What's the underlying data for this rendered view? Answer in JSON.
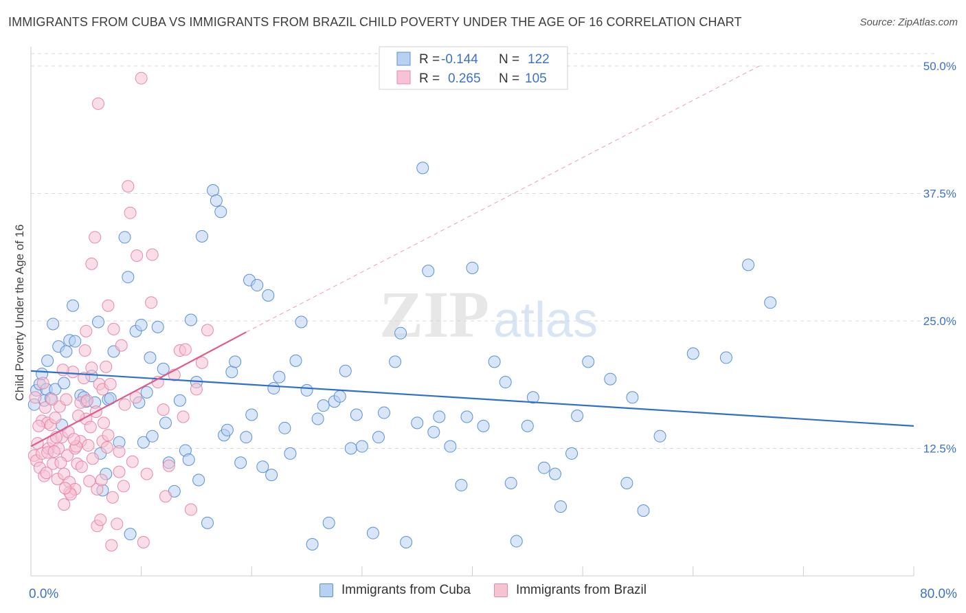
{
  "header": {
    "title": "IMMIGRANTS FROM CUBA VS IMMIGRANTS FROM BRAZIL CHILD POVERTY UNDER THE AGE OF 16 CORRELATION CHART",
    "source": "Source: ZipAtlas.com"
  },
  "watermark": {
    "zip": "ZIP",
    "atlas": "atlas"
  },
  "colors": {
    "cuba_fill": "#b8d1f2",
    "cuba_stroke": "#5b8fd6",
    "cuba_line": "#2e6fcc",
    "brazil_fill": "#f6c3d3",
    "brazil_stroke": "#e888a8",
    "brazil_line": "#e05b8a",
    "axis_label": "#3b72c4",
    "grid": "#d9d9d9"
  },
  "stats_legend": {
    "rows": [
      {
        "r_label": "R =",
        "r_value": "-0.144",
        "n_label": "N =",
        "n_value": "122"
      },
      {
        "r_label": "R =",
        "r_value": "0.265",
        "n_label": "N =",
        "n_value": "105"
      }
    ]
  },
  "chart_data": {
    "type": "scatter",
    "title": "IMMIGRANTS FROM CUBA VS IMMIGRANTS FROM BRAZIL CHILD POVERTY UNDER THE AGE OF 16 CORRELATION CHART",
    "xlabel": "",
    "ylabel": "Child Poverty Under the Age of 16",
    "xlim": [
      0,
      80
    ],
    "ylim": [
      0,
      50
    ],
    "x_tick_labels": [
      {
        "value": 0,
        "label": "0.0%"
      },
      {
        "value": 80,
        "label": "80.0%"
      }
    ],
    "y_tick_labels": [
      {
        "value": 12.5,
        "label": "12.5%"
      },
      {
        "value": 25,
        "label": "25.0%"
      },
      {
        "value": 37.5,
        "label": "37.5%"
      },
      {
        "value": 50,
        "label": "50.0%"
      }
    ],
    "grid": true,
    "legend": "bottom",
    "series": [
      {
        "name": "Immigrants from Cuba",
        "r": -0.144,
        "n": 122,
        "trend": {
          "x0": 0,
          "y0": 20.1,
          "x1": 80,
          "y1": 14.7
        },
        "points": [
          [
            0.5,
            18.2
          ],
          [
            0.8,
            18.8
          ],
          [
            1.2,
            17.2
          ],
          [
            1.4,
            18.3
          ],
          [
            1.5,
            21.1
          ],
          [
            1.8,
            17.4
          ],
          [
            2.0,
            24.7
          ],
          [
            2.2,
            18.3
          ],
          [
            2.5,
            22.5
          ],
          [
            3.0,
            18.9
          ],
          [
            3.2,
            22.0
          ],
          [
            3.5,
            23.1
          ],
          [
            3.8,
            26.5
          ],
          [
            4.0,
            23.0
          ],
          [
            4.5,
            17.7
          ],
          [
            4.8,
            17.5
          ],
          [
            5.0,
            17.1
          ],
          [
            5.5,
            19.6
          ],
          [
            5.8,
            17.0
          ],
          [
            6.1,
            24.9
          ],
          [
            6.5,
            8.4
          ],
          [
            6.8,
            10.0
          ],
          [
            7.0,
            17.3
          ],
          [
            7.2,
            17.4
          ],
          [
            7.5,
            22.0
          ],
          [
            8.0,
            13.1
          ],
          [
            8.5,
            33.2
          ],
          [
            8.8,
            29.3
          ],
          [
            9.0,
            4.1
          ],
          [
            9.5,
            24.0
          ],
          [
            10.0,
            24.6
          ],
          [
            10.2,
            13.1
          ],
          [
            10.5,
            18.0
          ],
          [
            10.8,
            21.4
          ],
          [
            11.0,
            13.7
          ],
          [
            11.5,
            24.4
          ],
          [
            12.0,
            20.3
          ],
          [
            12.5,
            11.1
          ],
          [
            13.0,
            8.3
          ],
          [
            13.5,
            17.2
          ],
          [
            14.0,
            12.3
          ],
          [
            14.3,
            11.4
          ],
          [
            14.5,
            25.1
          ],
          [
            15.0,
            19.0
          ],
          [
            15.5,
            33.3
          ],
          [
            16.0,
            5.2
          ],
          [
            16.5,
            37.8
          ],
          [
            16.8,
            36.8
          ],
          [
            17.2,
            35.7
          ],
          [
            17.5,
            13.8
          ],
          [
            17.8,
            14.3
          ],
          [
            18.2,
            20.0
          ],
          [
            18.5,
            21.0
          ],
          [
            19.0,
            11.1
          ],
          [
            19.5,
            13.6
          ],
          [
            19.8,
            29.0
          ],
          [
            20.0,
            15.8
          ],
          [
            20.5,
            28.5
          ],
          [
            21.0,
            10.7
          ],
          [
            21.5,
            27.5
          ],
          [
            22.0,
            18.4
          ],
          [
            22.5,
            19.5
          ],
          [
            23.0,
            14.5
          ],
          [
            23.5,
            12.0
          ],
          [
            24.0,
            21.1
          ],
          [
            24.5,
            24.9
          ],
          [
            25.0,
            18.2
          ],
          [
            25.5,
            3.1
          ],
          [
            26.0,
            15.4
          ],
          [
            26.5,
            16.7
          ],
          [
            27.0,
            5.2
          ],
          [
            27.5,
            17.1
          ],
          [
            28.0,
            17.6
          ],
          [
            28.5,
            20.1
          ],
          [
            29.0,
            12.5
          ],
          [
            29.5,
            15.8
          ],
          [
            30.0,
            12.7
          ],
          [
            31.0,
            4.2
          ],
          [
            31.5,
            13.6
          ],
          [
            32.0,
            16.0
          ],
          [
            33.0,
            21.0
          ],
          [
            33.5,
            23.8
          ],
          [
            34.0,
            3.3
          ],
          [
            35.0,
            15.0
          ],
          [
            35.5,
            40.0
          ],
          [
            36.0,
            29.9
          ],
          [
            36.5,
            14.1
          ],
          [
            37.0,
            15.6
          ],
          [
            38.0,
            12.7
          ],
          [
            39.0,
            8.9
          ],
          [
            39.5,
            15.6
          ],
          [
            40.0,
            30.2
          ],
          [
            41.0,
            14.7
          ],
          [
            42.0,
            21.0
          ],
          [
            43.0,
            19.0
          ],
          [
            43.5,
            9.1
          ],
          [
            44.0,
            3.4
          ],
          [
            45.0,
            14.7
          ],
          [
            45.5,
            17.5
          ],
          [
            46.5,
            10.6
          ],
          [
            47.5,
            10.0
          ],
          [
            48.0,
            6.8
          ],
          [
            49.0,
            12.0
          ],
          [
            49.5,
            15.7
          ],
          [
            50.5,
            21.0
          ],
          [
            52.5,
            19.3
          ],
          [
            54.0,
            9.1
          ],
          [
            54.5,
            17.5
          ],
          [
            55.5,
            6.4
          ],
          [
            57.0,
            13.7
          ],
          [
            60.0,
            21.8
          ],
          [
            63.0,
            21.4
          ],
          [
            65.0,
            30.5
          ],
          [
            67.0,
            26.8
          ],
          [
            0.3,
            16.8
          ],
          [
            1.0,
            19.8
          ],
          [
            2.8,
            14.8
          ],
          [
            6.3,
            12.0
          ],
          [
            9.8,
            17.0
          ],
          [
            12.2,
            15.0
          ],
          [
            15.2,
            9.4
          ],
          [
            21.8,
            9.9
          ]
        ]
      },
      {
        "name": "Immigrants from Brazil",
        "r": 0.265,
        "n": 105,
        "trend": {
          "x0": 0,
          "y0": 12.7,
          "x1": 19.5,
          "y1": 23.9
        },
        "trend_extended": {
          "x0": 19.5,
          "y0": 23.9,
          "x1": 66,
          "y1": 50
        },
        "points": [
          [
            0.3,
            11.8
          ],
          [
            0.5,
            11.3
          ],
          [
            0.6,
            13.0
          ],
          [
            0.8,
            10.6
          ],
          [
            1.0,
            12.0
          ],
          [
            1.0,
            15.2
          ],
          [
            1.2,
            9.8
          ],
          [
            1.3,
            16.5
          ],
          [
            1.5,
            15.0
          ],
          [
            1.6,
            12.5
          ],
          [
            1.8,
            14.8
          ],
          [
            2.0,
            11.0
          ],
          [
            2.0,
            13.2
          ],
          [
            2.2,
            15.5
          ],
          [
            2.4,
            9.5
          ],
          [
            2.5,
            12.5
          ],
          [
            2.6,
            16.6
          ],
          [
            2.8,
            13.6
          ],
          [
            3.0,
            10.0
          ],
          [
            3.0,
            7.0
          ],
          [
            3.2,
            17.3
          ],
          [
            3.3,
            11.8
          ],
          [
            3.5,
            9.2
          ],
          [
            3.5,
            8.2
          ],
          [
            3.8,
            20.0
          ],
          [
            4.0,
            12.5
          ],
          [
            4.0,
            8.5
          ],
          [
            4.2,
            11.0
          ],
          [
            4.5,
            17.0
          ],
          [
            4.5,
            13.2
          ],
          [
            4.8,
            19.4
          ],
          [
            5.0,
            24.0
          ],
          [
            5.0,
            15.4
          ],
          [
            5.2,
            12.8
          ],
          [
            5.3,
            9.3
          ],
          [
            5.5,
            20.4
          ],
          [
            5.5,
            30.6
          ],
          [
            5.8,
            33.2
          ],
          [
            6.0,
            8.5
          ],
          [
            6.0,
            4.9
          ],
          [
            6.2,
            18.8
          ],
          [
            6.3,
            5.5
          ],
          [
            6.5,
            18.3
          ],
          [
            6.5,
            13.2
          ],
          [
            6.8,
            20.5
          ],
          [
            7.0,
            26.5
          ],
          [
            7.0,
            13.8
          ],
          [
            7.2,
            18.8
          ],
          [
            7.3,
            3.0
          ],
          [
            7.5,
            24.2
          ],
          [
            7.8,
            5.1
          ],
          [
            8.0,
            12.2
          ],
          [
            8.0,
            10.2
          ],
          [
            8.2,
            22.6
          ],
          [
            8.5,
            16.8
          ],
          [
            8.8,
            38.2
          ],
          [
            9.0,
            35.6
          ],
          [
            9.2,
            11.2
          ],
          [
            9.5,
            17.5
          ],
          [
            10.0,
            48.8
          ],
          [
            10.2,
            3.3
          ],
          [
            10.5,
            10.0
          ],
          [
            11.0,
            31.5
          ],
          [
            11.5,
            19.0
          ],
          [
            12.0,
            16.3
          ],
          [
            12.2,
            7.8
          ],
          [
            12.5,
            10.8
          ],
          [
            13.0,
            19.7
          ],
          [
            13.5,
            22.1
          ],
          [
            13.8,
            15.6
          ],
          [
            14.0,
            22.2
          ],
          [
            14.5,
            6.5
          ],
          [
            15.0,
            18.3
          ],
          [
            15.5,
            20.9
          ],
          [
            16.0,
            24.1
          ],
          [
            6.1,
            46.3
          ],
          [
            1.5,
            12.1
          ],
          [
            2.3,
            13.6
          ],
          [
            1.1,
            18.9
          ],
          [
            2.9,
            20.2
          ],
          [
            3.6,
            8.0
          ],
          [
            4.3,
            15.7
          ],
          [
            4.9,
            22.1
          ],
          [
            5.6,
            11.5
          ],
          [
            6.4,
            9.4
          ],
          [
            0.7,
            14.7
          ],
          [
            1.9,
            17.3
          ],
          [
            2.7,
            11.1
          ],
          [
            3.4,
            14.1
          ],
          [
            4.1,
            12.7
          ],
          [
            5.1,
            17.2
          ],
          [
            5.9,
            16.1
          ],
          [
            6.6,
            15.0
          ],
          [
            7.4,
            7.7
          ],
          [
            0.4,
            17.5
          ],
          [
            1.4,
            10.1
          ],
          [
            2.1,
            12.2
          ],
          [
            3.1,
            8.6
          ],
          [
            3.9,
            13.4
          ],
          [
            4.6,
            10.7
          ],
          [
            5.4,
            14.6
          ],
          [
            6.9,
            12.6
          ],
          [
            8.4,
            8.8
          ],
          [
            9.6,
            31.4
          ],
          [
            10.9,
            26.8
          ]
        ]
      }
    ]
  }
}
